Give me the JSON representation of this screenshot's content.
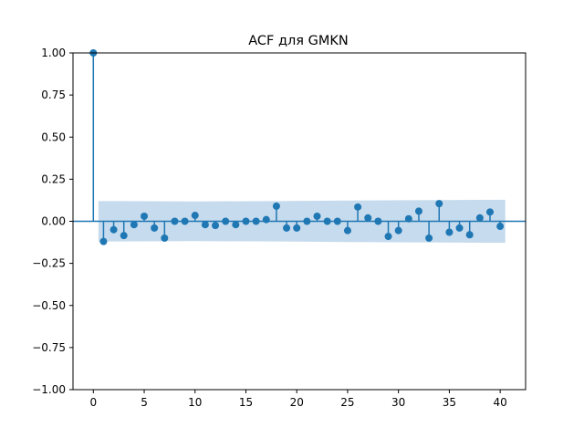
{
  "chart_data": {
    "type": "stem",
    "title": "ACF для GMKN",
    "xlabel": "",
    "ylabel": "",
    "xlim": [
      -2,
      42.5
    ],
    "ylim": [
      -1.0,
      1.0
    ],
    "xticks": [
      0,
      5,
      10,
      15,
      20,
      25,
      30,
      35,
      40
    ],
    "yticks": [
      -1.0,
      -0.75,
      -0.5,
      -0.25,
      0.0,
      0.25,
      0.5,
      0.75,
      1.0
    ],
    "ytick_labels": [
      "−1.00",
      "−0.75",
      "−0.50",
      "−0.25",
      "0.00",
      "0.25",
      "0.50",
      "0.75",
      "1.00"
    ],
    "grid": false,
    "legend": "none",
    "colors": {
      "series": "#1f77b4",
      "band": "#c6dbed",
      "zero_line": "#1f77b4"
    },
    "series": [
      {
        "lags": [
          0,
          1,
          2,
          3,
          4,
          5,
          6,
          7,
          8,
          9,
          10,
          11,
          12,
          13,
          14,
          15,
          16,
          17,
          18,
          19,
          20,
          21,
          22,
          23,
          24,
          25,
          26,
          27,
          28,
          29,
          30,
          31,
          32,
          33,
          34,
          35,
          36,
          37,
          38,
          39,
          40
        ],
        "values": [
          1.0,
          -0.12,
          -0.05,
          -0.085,
          -0.02,
          0.03,
          -0.04,
          -0.1,
          0.0,
          0.0,
          0.035,
          -0.02,
          -0.025,
          0.0,
          -0.02,
          0.0,
          0.0,
          0.01,
          0.09,
          -0.04,
          -0.04,
          0.0,
          0.03,
          0.0,
          0.0,
          -0.055,
          0.085,
          0.02,
          0.0,
          -0.09,
          -0.055,
          0.015,
          0.06,
          -0.1,
          0.105,
          -0.065,
          -0.04,
          -0.08,
          0.02,
          0.055,
          -0.03
        ]
      }
    ],
    "confidence_band": {
      "lags": [
        0.5,
        10,
        18,
        25,
        40.5
      ],
      "upper": [
        0.12,
        0.118,
        0.12,
        0.123,
        0.128
      ],
      "lower": [
        -0.12,
        -0.118,
        -0.12,
        -0.123,
        -0.128
      ]
    }
  }
}
